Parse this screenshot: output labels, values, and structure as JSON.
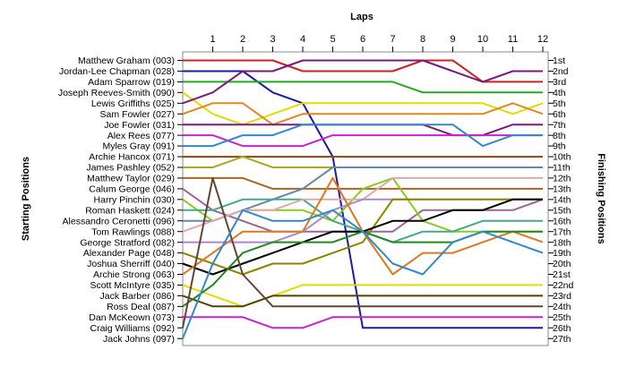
{
  "chart_data": {
    "type": "line",
    "xlabel": "Laps",
    "ylabel_left": "Starting Positions",
    "ylabel_right": "Finishing Positions",
    "x": [
      1,
      2,
      3,
      4,
      5,
      6,
      7,
      8,
      9,
      10,
      11,
      12
    ],
    "drivers": [
      "Matthew Graham (003)",
      "Jordan-Lee Chapman (028)",
      "Adam Sparrow (019)",
      "Joseph Reeves-Smith (090)",
      "Lewis Griffiths (025)",
      "Sam Fowler (027)",
      "Joe Fowler (031)",
      "Alex Rees (077)",
      "Myles Gray (091)",
      "Archie Hancox (071)",
      "James Pashley (052)",
      "Matthew Taylor (029)",
      "Calum George (046)",
      "Harry Pinchin (030)",
      "Roman Haskett (024)",
      "Alessandro Ceronetti (096)",
      "Tom Rawlings (088)",
      "George Stratford (082)",
      "Alexander Page (048)",
      "Joshua Sherriff (040)",
      "Archie Strong (063)",
      "Scott McIntyre (035)",
      "Jack Barber (086)",
      "Ross Deal (087)",
      "Dan McKeown (073)",
      "Craig Williams (092)",
      "Jack Johns (097)"
    ],
    "finishing_positions": [
      "1st",
      "2nd",
      "3rd",
      "4th",
      "5th",
      "6th",
      "7th",
      "8th",
      "9th",
      "10th",
      "11th",
      "12th",
      "13th",
      "14th",
      "15th",
      "16th",
      "17th",
      "18th",
      "19th",
      "20th",
      "21st",
      "22nd",
      "23rd",
      "24th",
      "25th",
      "26th",
      "27th"
    ],
    "series": [
      {
        "color": "#cc2222",
        "positions": [
          1,
          1,
          1,
          1,
          2,
          2,
          2,
          2,
          1,
          1,
          3,
          3,
          3
        ]
      },
      {
        "color": "#1a1aaa",
        "positions": [
          2,
          2,
          2,
          4,
          5,
          10,
          26,
          26,
          26,
          26,
          26,
          26,
          26
        ]
      },
      {
        "color": "#22aa22",
        "positions": [
          3,
          3,
          3,
          3,
          3,
          3,
          3,
          3,
          4,
          4,
          4,
          4,
          4
        ]
      },
      {
        "color": "#dddd00",
        "positions": [
          4,
          6,
          7,
          6,
          5,
          5,
          5,
          5,
          5,
          5,
          5,
          6,
          5
        ]
      },
      {
        "color": "#7a1a7a",
        "positions": [
          5,
          4,
          2,
          2,
          1,
          1,
          1,
          1,
          1,
          2,
          3,
          2,
          2
        ]
      },
      {
        "color": "#e08822",
        "positions": [
          6,
          5,
          5,
          7,
          6,
          6,
          6,
          6,
          6,
          6,
          6,
          5,
          6
        ]
      },
      {
        "color": "#7a1a7a",
        "positions": [
          7,
          7,
          7,
          7,
          7,
          7,
          7,
          7,
          7,
          8,
          8,
          7,
          7
        ]
      },
      {
        "color": "#cc22cc",
        "positions": [
          8,
          8,
          9,
          9,
          9,
          8,
          8,
          8,
          8,
          8,
          8,
          8,
          8
        ]
      },
      {
        "color": "#3388cc",
        "positions": [
          9,
          9,
          8,
          8,
          7,
          7,
          7,
          7,
          7,
          7,
          9,
          8,
          8
        ]
      },
      {
        "color": "#8b4513",
        "positions": [
          10,
          10,
          10,
          10,
          10,
          10,
          10,
          10,
          10,
          10,
          10,
          10,
          10
        ]
      },
      {
        "color": "#aaaa22",
        "positions": [
          11,
          11,
          10,
          11,
          11,
          11,
          11,
          11,
          11,
          11,
          11,
          11,
          11
        ]
      },
      {
        "color": "#aa6622",
        "positions": [
          12,
          12,
          12,
          13,
          13,
          13,
          13,
          13,
          13,
          13,
          13,
          13,
          13
        ]
      },
      {
        "color": "#996699",
        "positions": [
          13,
          15,
          16,
          17,
          17,
          17,
          17,
          17,
          15,
          15,
          15,
          15,
          14
        ]
      },
      {
        "color": "#88cc22",
        "positions": [
          14,
          16,
          15,
          15,
          15,
          16,
          13,
          12,
          16,
          17,
          17,
          17,
          17
        ]
      },
      {
        "color": "#44aa88",
        "positions": [
          15,
          15,
          14,
          14,
          14,
          16,
          17,
          18,
          17,
          17,
          16,
          16,
          16
        ]
      },
      {
        "color": "#6688aa",
        "positions": [
          16,
          16,
          15,
          14,
          13,
          11,
          11,
          11,
          11,
          11,
          11,
          11,
          11
        ]
      },
      {
        "color": "#ddaaaa",
        "positions": [
          17,
          16,
          15,
          15,
          14,
          14,
          14,
          12,
          12,
          12,
          12,
          12,
          12
        ]
      },
      {
        "color": "#aa88cc",
        "positions": [
          18,
          18,
          18,
          18,
          17,
          15,
          14,
          14,
          14,
          14,
          14,
          14,
          14
        ]
      },
      {
        "color": "#888800",
        "positions": [
          19,
          20,
          21,
          20,
          20,
          19,
          18,
          14,
          14,
          14,
          14,
          14,
          14
        ]
      },
      {
        "color": "#000000",
        "positions": [
          20,
          21,
          20,
          19,
          18,
          17,
          17,
          16,
          16,
          15,
          15,
          14,
          14
        ]
      },
      {
        "color": "#e07722",
        "positions": [
          21,
          19,
          17,
          17,
          17,
          12,
          17,
          21,
          19,
          19,
          18,
          17,
          18
        ]
      },
      {
        "color": "#dddd00",
        "positions": [
          22,
          23,
          24,
          23,
          22,
          22,
          22,
          22,
          22,
          22,
          22,
          22,
          22
        ]
      },
      {
        "color": "#554400",
        "positions": [
          23,
          24,
          24,
          23,
          23,
          23,
          23,
          23,
          23,
          23,
          23,
          23,
          23
        ]
      },
      {
        "color": "#228822",
        "positions": [
          24,
          22,
          19,
          18,
          18,
          18,
          17,
          18,
          18,
          18,
          17,
          17,
          17
        ]
      },
      {
        "color": "#cc22cc",
        "positions": [
          25,
          25,
          25,
          26,
          26,
          25,
          25,
          25,
          25,
          25,
          25,
          25,
          25
        ]
      },
      {
        "color": "#664433",
        "positions": [
          26,
          12,
          21,
          24,
          24,
          24,
          24,
          24,
          24,
          24,
          24,
          24,
          24
        ]
      },
      {
        "color": "#3388cc",
        "positions": [
          27,
          20,
          15,
          16,
          16,
          15,
          17,
          20,
          21,
          18,
          17,
          18,
          19
        ]
      }
    ]
  }
}
